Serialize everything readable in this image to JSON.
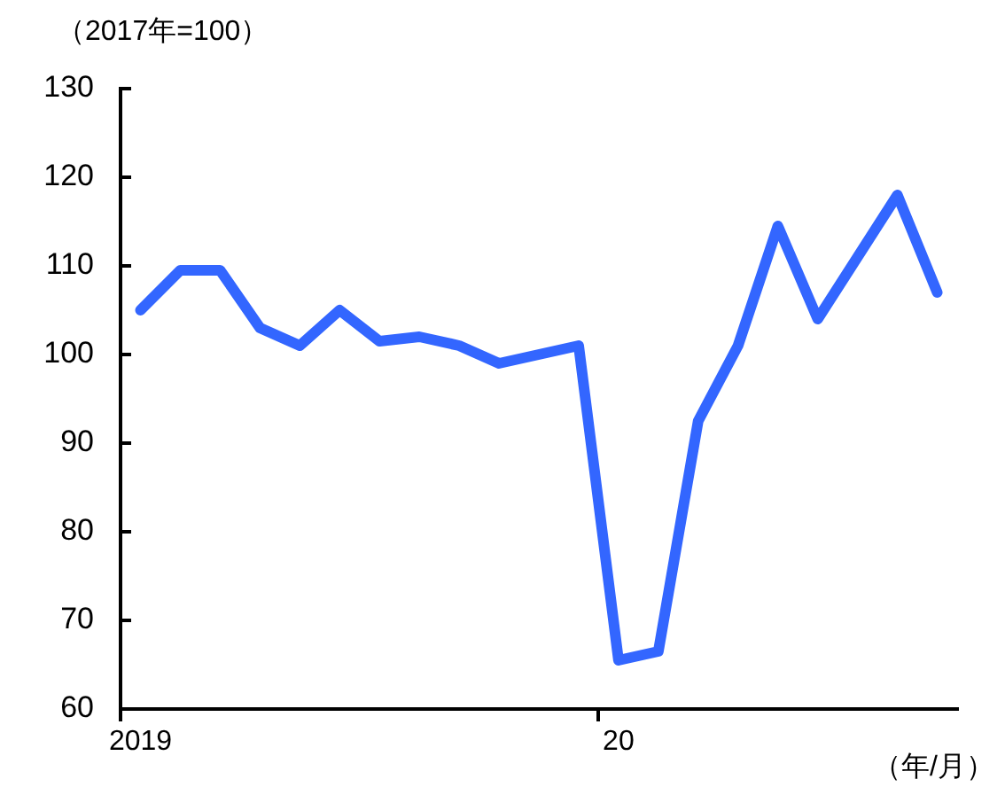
{
  "chart_data": {
    "type": "line",
    "ylabel": "（2017年=100）",
    "xlabel": "（年/月）",
    "categories": [
      "2019",
      null,
      null,
      null,
      null,
      null,
      null,
      null,
      null,
      null,
      null,
      null,
      "20",
      null,
      null,
      null,
      null,
      null,
      null,
      null,
      null
    ],
    "series": [
      {
        "color": "#3366ff",
        "values": [
          105,
          109.5,
          109.5,
          103,
          101,
          105,
          101.5,
          102,
          101,
          99,
          100,
          101,
          65.5,
          66.5,
          92.5,
          101,
          114.5,
          104,
          111,
          118,
          107
        ]
      }
    ],
    "ylim": [
      60,
      130
    ],
    "yticks": [
      60,
      70,
      80,
      90,
      100,
      110,
      120,
      130
    ],
    "grid": false,
    "legend": false,
    "marker": "none",
    "line_style": "solid"
  }
}
